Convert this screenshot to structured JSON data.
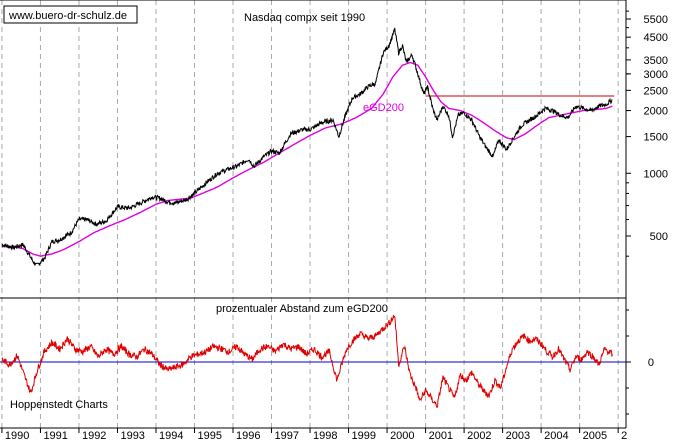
{
  "watermark": "www.buero-dr-schulz.de",
  "source_label": "Hoppenstedt Charts",
  "colors": {
    "price": "#000000",
    "ema": "#e000e0",
    "oscillator": "#e00000",
    "zero_line": "#0000cc",
    "resistance": "#cc0000",
    "grid": "#aaaaaa"
  },
  "chart_data": [
    {
      "type": "line",
      "title": "Nasdaq compx seit 1990",
      "scale": "log",
      "x_ticks": [
        "1990",
        "1991",
        "1992",
        "1993",
        "1994",
        "1995",
        "1996",
        "1997",
        "1998",
        "1999",
        "2000",
        "2001",
        "2002",
        "2003",
        "2004",
        "2005",
        "2"
      ],
      "y_ticks": [
        500,
        1000,
        1500,
        2000,
        2500,
        3000,
        3500,
        4500,
        5500
      ],
      "ylim": [
        300,
        7000
      ],
      "annotation": "eGD200",
      "horizontal_line": {
        "y": 2350,
        "from": 2001.0,
        "to": 2005.9
      },
      "series": [
        {
          "key": "price",
          "x": [
            1990.0,
            1990.3,
            1990.55,
            1990.8,
            1990.9,
            1991.1,
            1991.3,
            1991.5,
            1991.8,
            1992.0,
            1992.2,
            1992.45,
            1992.7,
            1993.0,
            1993.3,
            1993.6,
            1993.9,
            1994.1,
            1994.3,
            1994.5,
            1994.8,
            1995.0,
            1995.3,
            1995.6,
            1995.9,
            1996.1,
            1996.4,
            1996.55,
            1996.8,
            1997.0,
            1997.2,
            1997.5,
            1997.8,
            1998.0,
            1998.3,
            1998.6,
            1998.75,
            1998.9,
            1999.1,
            1999.3,
            1999.5,
            1999.7,
            1999.9,
            2000.05,
            2000.2,
            2000.3,
            2000.4,
            2000.5,
            2000.65,
            2000.8,
            2000.95,
            2001.05,
            2001.2,
            2001.3,
            2001.45,
            2001.6,
            2001.7,
            2001.85,
            2002.0,
            2002.2,
            2002.4,
            2002.55,
            2002.75,
            2002.9,
            2003.1,
            2003.3,
            2003.5,
            2003.7,
            2003.9,
            2004.1,
            2004.3,
            2004.5,
            2004.7,
            2004.9,
            2005.1,
            2005.3,
            2005.5,
            2005.7,
            2005.85
          ],
          "y": [
            455,
            440,
            455,
            380,
            360,
            390,
            470,
            480,
            520,
            600,
            600,
            570,
            590,
            690,
            680,
            720,
            770,
            760,
            730,
            720,
            750,
            800,
            900,
            1000,
            1050,
            1080,
            1170,
            1080,
            1200,
            1280,
            1250,
            1550,
            1620,
            1620,
            1750,
            1800,
            1500,
            1850,
            2300,
            2400,
            2600,
            2700,
            3800,
            4100,
            4900,
            3800,
            4100,
            3400,
            3700,
            3000,
            2400,
            2600,
            2000,
            1800,
            2100,
            1900,
            1500,
            1900,
            1950,
            1800,
            1500,
            1350,
            1200,
            1450,
            1300,
            1500,
            1700,
            1800,
            1900,
            2050,
            2000,
            1900,
            1850,
            2100,
            2050,
            2000,
            2100,
            2150,
            2250
          ]
        },
        {
          "key": "ema",
          "name": "eGD200",
          "x": [
            1990.0,
            1990.3,
            1990.55,
            1990.8,
            1991.0,
            1991.3,
            1991.6,
            1992.0,
            1992.4,
            1992.8,
            1993.2,
            1993.6,
            1994.0,
            1994.3,
            1994.6,
            1994.9,
            1995.2,
            1995.6,
            1996.0,
            1996.4,
            1996.8,
            1997.2,
            1997.6,
            1998.0,
            1998.4,
            1998.8,
            1999.2,
            1999.6,
            1999.9,
            2000.15,
            2000.4,
            2000.6,
            2000.8,
            2001.0,
            2001.2,
            2001.4,
            2001.6,
            2001.9,
            2002.2,
            2002.5,
            2002.8,
            2003.1,
            2003.3,
            2003.6,
            2003.9,
            2004.2,
            2004.5,
            2004.8,
            2005.1,
            2005.4,
            2005.7,
            2005.85
          ],
          "y": [
            445,
            445,
            435,
            410,
            400,
            410,
            430,
            470,
            520,
            560,
            600,
            650,
            710,
            740,
            750,
            760,
            800,
            860,
            950,
            1040,
            1130,
            1250,
            1380,
            1520,
            1650,
            1720,
            1850,
            2050,
            2400,
            2900,
            3300,
            3400,
            3300,
            2900,
            2500,
            2200,
            2050,
            2000,
            1900,
            1750,
            1600,
            1480,
            1450,
            1550,
            1700,
            1850,
            1900,
            1950,
            2000,
            2020,
            2050,
            2100
          ]
        }
      ]
    },
    {
      "type": "line",
      "title": "prozentualer Abstand zum eGD200",
      "y_ticks": [
        0
      ],
      "x_ticks": [
        "1990",
        "1991",
        "1992",
        "1993",
        "1994",
        "1995",
        "1996",
        "1997",
        "1998",
        "1999",
        "2000",
        "2001",
        "2002",
        "2003",
        "2004",
        "2005",
        "2"
      ],
      "series": [
        {
          "key": "oscillator",
          "x": [
            1990.0,
            1990.2,
            1990.4,
            1990.6,
            1990.75,
            1990.9,
            1991.1,
            1991.3,
            1991.5,
            1991.7,
            1991.9,
            1992.1,
            1992.3,
            1992.5,
            1992.7,
            1992.9,
            1993.1,
            1993.3,
            1993.5,
            1993.7,
            1993.9,
            1994.1,
            1994.3,
            1994.5,
            1994.7,
            1994.9,
            1995.1,
            1995.3,
            1995.5,
            1995.7,
            1995.9,
            1996.1,
            1996.3,
            1996.5,
            1996.7,
            1996.9,
            1997.1,
            1997.3,
            1997.5,
            1997.7,
            1997.9,
            1998.1,
            1998.3,
            1998.5,
            1998.7,
            1998.8,
            1998.95,
            1999.1,
            1999.3,
            1999.5,
            1999.7,
            1999.9,
            2000.05,
            2000.2,
            2000.3,
            2000.45,
            2000.6,
            2000.75,
            2000.85,
            2001.0,
            2001.15,
            2001.3,
            2001.45,
            2001.6,
            2001.75,
            2001.9,
            2002.05,
            2002.2,
            2002.35,
            2002.5,
            2002.65,
            2002.8,
            2002.95,
            2003.1,
            2003.25,
            2003.4,
            2003.55,
            2003.7,
            2003.85,
            2004.0,
            2004.15,
            2004.3,
            2004.45,
            2004.6,
            2004.75,
            2004.9,
            2005.05,
            2005.2,
            2005.35,
            2005.5,
            2005.65,
            2005.85
          ],
          "y": [
            2,
            -2,
            5,
            -12,
            -24,
            -8,
            8,
            15,
            10,
            18,
            10,
            8,
            12,
            4,
            10,
            6,
            12,
            6,
            4,
            10,
            6,
            -2,
            -6,
            -4,
            -2,
            4,
            6,
            8,
            12,
            10,
            8,
            12,
            6,
            2,
            10,
            12,
            8,
            14,
            10,
            12,
            6,
            10,
            4,
            8,
            -14,
            -4,
            10,
            16,
            22,
            18,
            20,
            26,
            30,
            36,
            -2,
            12,
            -10,
            -20,
            -30,
            -22,
            -28,
            -34,
            -12,
            -20,
            -28,
            -10,
            -14,
            -8,
            -16,
            -22,
            -26,
            -14,
            -20,
            -4,
            10,
            16,
            20,
            16,
            18,
            14,
            8,
            4,
            10,
            2,
            -6,
            4,
            2,
            8,
            4,
            -2,
            10,
            6
          ]
        }
      ]
    }
  ]
}
